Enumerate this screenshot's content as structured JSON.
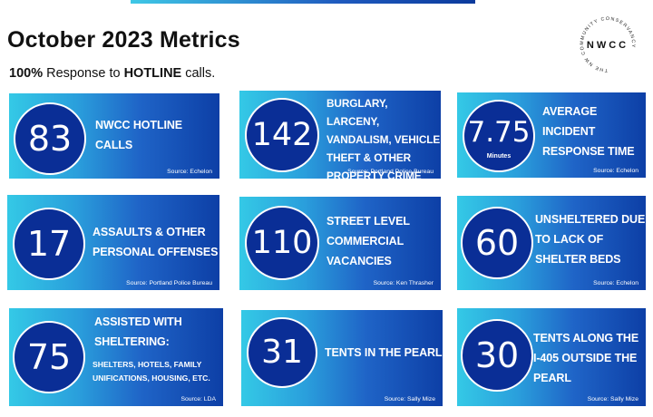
{
  "page": {
    "title": "October 2023 Metrics",
    "subtitle_bold_1": "100%",
    "subtitle_text_1": " Response to ",
    "subtitle_bold_2": "HOTLINE",
    "subtitle_text_2": " calls."
  },
  "logo": {
    "initials": "NWCC",
    "ring_text": "THE NW COMMUNITY CONSERVANCY"
  },
  "cards": [
    {
      "value": "83",
      "label": "NWCC HOTLINE\nCALLS",
      "source": "Source: Echelon"
    },
    {
      "value": "142",
      "label": "BURGLARY, LARCENY,\nVANDALISM, VEHICLE\nTHEFT & OTHER\nPROPERTY CRIME",
      "source": "Source: Portland Police Bureau"
    },
    {
      "value": "7.75",
      "unit": "Minutes",
      "label": "AVERAGE\nINCIDENT\nRESPONSE TIME",
      "source": "Source: Echelon"
    },
    {
      "value": "17",
      "label": "ASSAULTS & OTHER\nPERSONAL OFFENSES",
      "source": "Source: Portland Police Bureau"
    },
    {
      "value": "110",
      "label": "STREET LEVEL\nCOMMERCIAL\nVACANCIES",
      "source": "Source: Ken Thrasher"
    },
    {
      "value": "60",
      "label": "UNSHELTERED DUE\nTO LACK OF\nSHELTER  BEDS",
      "source": "Source: Echelon"
    },
    {
      "value": "75",
      "label": "ASSISTED WITH\nSHELTERING:",
      "sublabel": "SHELTERS, HOTELS, FAMILY\nUNIFICATIONS, HOUSING, ETC.",
      "source": "Source: LDA"
    },
    {
      "value": "31",
      "label": "TENTS IN THE PEARL",
      "source": "Source: Sally Mize"
    },
    {
      "value": "30",
      "label": "TENTS ALONG THE\nI-405 OUTSIDE THE\nPEARL",
      "source": "Source: Sally Mize"
    }
  ]
}
